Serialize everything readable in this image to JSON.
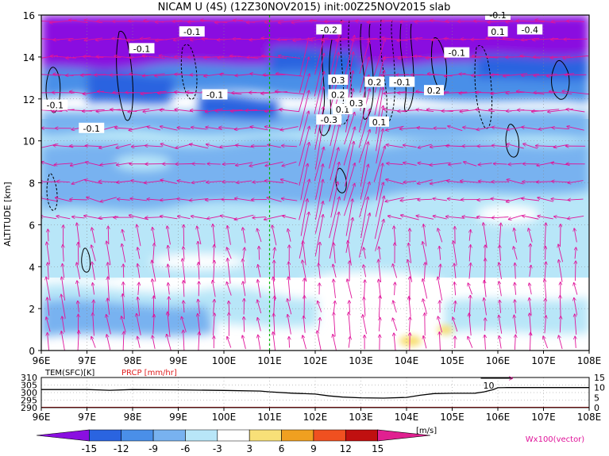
{
  "title": "NICAM U (4S) (12Z30NOV2015) init:00Z25NOV2015 slab",
  "chart_data": [
    {
      "type": "heatmap",
      "ylabel": "ALTITUDE [km]",
      "xticks": [
        "96E",
        "97E",
        "98E",
        "99E",
        "100E",
        "101E",
        "102E",
        "103E",
        "104E",
        "105E",
        "106E",
        "107E",
        "108E"
      ],
      "yticks": [
        "0",
        "2",
        "4",
        "6",
        "8",
        "10",
        "12",
        "14",
        "16"
      ],
      "xlim": [
        96,
        108
      ],
      "ylim": [
        0,
        16
      ],
      "grid": true,
      "marker_line_lon": 101,
      "colorbar": {
        "ticks": [
          "-15",
          "-12",
          "-9",
          "-6",
          "-3",
          "3",
          "6",
          "9",
          "12",
          "15"
        ],
        "unit": "[m/s]",
        "colors": [
          "#8a0fe0",
          "#2a64e0",
          "#4a8fe8",
          "#78b2f0",
          "#b8e6f8",
          "#ffffff",
          "#f8e078",
          "#f0a020",
          "#f05020",
          "#c01010",
          "#e02090"
        ]
      },
      "vector_label": "Wx100(vector)",
      "contour_labels": [
        {
          "text": "-0.1",
          "lon": 96.3,
          "alt": 11.7
        },
        {
          "text": "-0.1",
          "lon": 97.1,
          "alt": 10.6
        },
        {
          "text": "-0.1",
          "lon": 98.2,
          "alt": 14.4
        },
        {
          "text": "-0.1",
          "lon": 99.3,
          "alt": 15.2
        },
        {
          "text": "-0.1",
          "lon": 99.8,
          "alt": 12.2
        },
        {
          "text": "-0.2",
          "lon": 102.3,
          "alt": 15.3
        },
        {
          "text": "0.3",
          "lon": 102.5,
          "alt": 12.9
        },
        {
          "text": "0.2",
          "lon": 102.5,
          "alt": 12.2
        },
        {
          "text": "-0.3",
          "lon": 102.3,
          "alt": 11.0
        },
        {
          "text": "0.1",
          "lon": 102.6,
          "alt": 11.5
        },
        {
          "text": "0.3",
          "lon": 102.9,
          "alt": 11.8
        },
        {
          "text": "0.2",
          "lon": 103.3,
          "alt": 12.8
        },
        {
          "text": "-0.1",
          "lon": 103.9,
          "alt": 12.8
        },
        {
          "text": "0.1",
          "lon": 103.4,
          "alt": 10.9
        },
        {
          "text": "0.2",
          "lon": 104.6,
          "alt": 12.4
        },
        {
          "text": "-0.1",
          "lon": 105.1,
          "alt": 14.2
        },
        {
          "text": "0.1",
          "lon": 106.0,
          "alt": 15.2
        },
        {
          "text": "-0.4",
          "lon": 106.7,
          "alt": 15.3
        },
        {
          "text": "-0.1",
          "lon": 106.0,
          "alt": 16.0
        }
      ]
    },
    {
      "type": "line",
      "title_tem": "TEM(SFC)[K]",
      "title_prcp": "PRCP [mm/hr]",
      "xticks": [
        "96E",
        "97E",
        "98E",
        "99E",
        "100E",
        "101E",
        "102E",
        "103E",
        "104E",
        "105E",
        "106E",
        "107E",
        "108E"
      ],
      "y_left_ticks": [
        "310",
        "305",
        "300",
        "295",
        "290"
      ],
      "y_right_ticks": [
        "15",
        "10",
        "5",
        "0"
      ],
      "x": [
        96,
        97,
        97.5,
        98,
        99,
        100,
        100.8,
        101,
        101.5,
        102,
        102.3,
        102.6,
        103,
        103.5,
        104,
        104.3,
        104.6,
        105,
        105.5,
        105.7,
        105.9,
        106,
        106.2,
        107,
        108
      ],
      "tem": [
        302.0,
        302.0,
        301.5,
        302.0,
        301.8,
        301.4,
        301.0,
        300.5,
        299.6,
        299.0,
        297.8,
        297.0,
        296.5,
        296.3,
        296.8,
        298.2,
        299.3,
        299.5,
        299.6,
        300.5,
        302.0,
        303.2,
        303.3,
        303.3,
        303.3
      ],
      "prcp": [
        0,
        0,
        0,
        0,
        0,
        0,
        0,
        0,
        0,
        0,
        0,
        0,
        0,
        0,
        0,
        0,
        0,
        0,
        0,
        0,
        0,
        0,
        0,
        0,
        0
      ],
      "annotation": {
        "text": "10",
        "lon": 105.8
      }
    }
  ]
}
